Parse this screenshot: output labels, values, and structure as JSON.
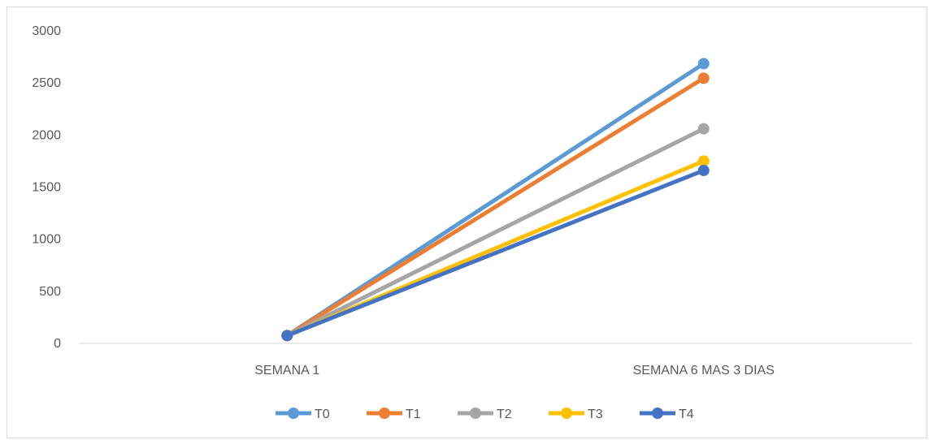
{
  "chart_data": {
    "type": "line",
    "title": "",
    "xlabel": "",
    "ylabel": "",
    "categories": [
      "SEMANA 1",
      "SEMANA 6 MAS 3 DIAS"
    ],
    "ylim": [
      0,
      3000
    ],
    "yticks": [
      0,
      500,
      1000,
      1500,
      2000,
      2500,
      3000
    ],
    "grid": false,
    "legend": "bottom",
    "series": [
      {
        "name": "T0",
        "color": "#5B9BD5",
        "values": [
          75,
          2685
        ]
      },
      {
        "name": "T1",
        "color": "#ED7D31",
        "values": [
          75,
          2545
        ]
      },
      {
        "name": "T2",
        "color": "#A5A5A5",
        "values": [
          75,
          2060
        ]
      },
      {
        "name": "T3",
        "color": "#FFC000",
        "values": [
          75,
          1750
        ]
      },
      {
        "name": "T4",
        "color": "#4472C4",
        "values": [
          75,
          1660
        ]
      }
    ]
  }
}
